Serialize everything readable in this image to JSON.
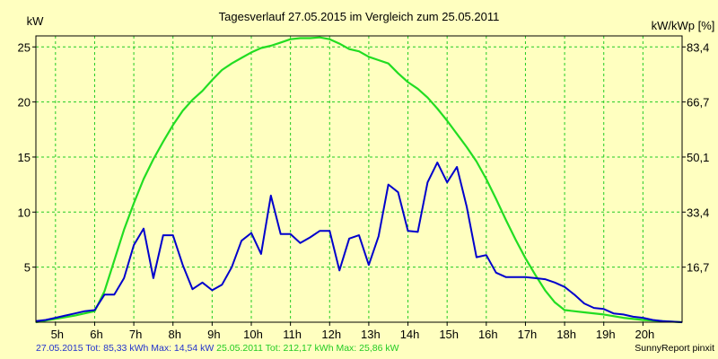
{
  "chart_data": {
    "type": "line",
    "title": "Tagesverlauf 27.05.2015 im Vergleich zum 25.05.2011",
    "ylabel": "kW",
    "ylabel_right": "kW/kWp [%]",
    "ylim": [
      0,
      26
    ],
    "xlim": [
      4.5,
      21.0
    ],
    "y_ticks": [
      5,
      10,
      15,
      20,
      25
    ],
    "y_tick_labels": [
      "5",
      "10",
      "15",
      "20",
      "25"
    ],
    "y2_ticks": [
      5,
      10,
      15,
      20,
      25
    ],
    "y2_tick_labels": [
      "16,7",
      "33,4",
      "50,1",
      "66,7",
      "83,4"
    ],
    "x_ticks": [
      5,
      6,
      7,
      8,
      9,
      10,
      11,
      12,
      13,
      14,
      15,
      16,
      17,
      18,
      19,
      20
    ],
    "x_tick_labels": [
      "5h",
      "6h",
      "7h",
      "8h",
      "9h",
      "10h",
      "11h",
      "12h",
      "13h",
      "14h",
      "15h",
      "16h",
      "17h",
      "18h",
      "19h",
      "20h"
    ],
    "grid": true,
    "series": [
      {
        "name": "27.05.2015",
        "color": "#0000cc",
        "x": [
          4.5,
          4.75,
          5.0,
          5.25,
          5.5,
          5.75,
          6.0,
          6.25,
          6.5,
          6.75,
          7.0,
          7.25,
          7.5,
          7.75,
          8.0,
          8.25,
          8.5,
          8.75,
          9.0,
          9.25,
          9.5,
          9.75,
          10.0,
          10.25,
          10.5,
          10.75,
          11.0,
          11.25,
          11.5,
          11.75,
          12.0,
          12.25,
          12.5,
          12.75,
          13.0,
          13.25,
          13.5,
          13.75,
          14.0,
          14.25,
          14.5,
          14.75,
          15.0,
          15.25,
          15.5,
          15.75,
          16.0,
          16.25,
          16.5,
          16.75,
          17.0,
          17.25,
          17.5,
          17.75,
          18.0,
          18.25,
          18.5,
          18.75,
          19.0,
          19.25,
          19.5,
          19.75,
          20.0,
          20.25,
          20.5,
          20.75,
          21.0
        ],
        "y": [
          0.1,
          0.2,
          0.4,
          0.6,
          0.8,
          1.0,
          1.1,
          2.5,
          2.5,
          4.0,
          7.0,
          8.5,
          4.0,
          7.9,
          7.9,
          5.2,
          3.0,
          3.6,
          2.9,
          3.4,
          5.0,
          7.4,
          8.1,
          6.2,
          11.5,
          8.0,
          8.0,
          7.2,
          7.7,
          8.3,
          8.3,
          4.7,
          7.6,
          7.9,
          5.2,
          7.8,
          12.5,
          11.8,
          8.3,
          8.2,
          12.7,
          14.5,
          12.7,
          14.1,
          10.5,
          5.9,
          6.1,
          4.5,
          4.1,
          4.1,
          4.1,
          4.0,
          3.9,
          3.6,
          3.2,
          2.5,
          1.7,
          1.3,
          1.2,
          0.8,
          0.7,
          0.5,
          0.4,
          0.2,
          0.1,
          0.05,
          0.0
        ]
      },
      {
        "name": "25.05.2011",
        "color": "#22dd22",
        "x": [
          4.5,
          5.0,
          5.5,
          6.0,
          6.25,
          6.5,
          6.75,
          7.0,
          7.25,
          7.5,
          7.75,
          8.0,
          8.25,
          8.5,
          8.75,
          9.0,
          9.25,
          9.5,
          9.75,
          10.0,
          10.25,
          10.5,
          10.75,
          11.0,
          11.25,
          11.5,
          11.75,
          12.0,
          12.25,
          12.5,
          12.75,
          13.0,
          13.25,
          13.5,
          13.75,
          14.0,
          14.25,
          14.5,
          14.75,
          15.0,
          15.25,
          15.5,
          15.75,
          16.0,
          16.25,
          16.5,
          16.75,
          17.0,
          17.25,
          17.5,
          17.75,
          18.0,
          18.5,
          19.0,
          19.5,
          20.0,
          20.5,
          21.0
        ],
        "y": [
          0.0,
          0.3,
          0.6,
          1.0,
          2.8,
          5.6,
          8.4,
          10.8,
          13.0,
          14.8,
          16.4,
          17.9,
          19.2,
          20.2,
          21.0,
          22.0,
          22.9,
          23.5,
          24.0,
          24.5,
          24.9,
          25.1,
          25.4,
          25.7,
          25.8,
          25.8,
          25.86,
          25.7,
          25.3,
          24.8,
          24.6,
          24.1,
          23.8,
          23.5,
          22.6,
          21.8,
          21.2,
          20.4,
          19.4,
          18.3,
          17.1,
          15.9,
          14.6,
          13.0,
          11.2,
          9.3,
          7.5,
          5.8,
          4.3,
          2.9,
          1.8,
          1.1,
          0.9,
          0.7,
          0.4,
          0.2,
          0.1,
          0.0
        ]
      }
    ]
  },
  "footer": {
    "left_blue": "27.05.2015 Tot: 85,33 kWh Max: 14,54 kW",
    "left_green": " 25.05.2011 Tot: 212,17 kWh Max: 25,86 kW",
    "right": "SunnyReport pinxit",
    "blue_color": "#2233cc",
    "green_color": "#22cc22"
  }
}
